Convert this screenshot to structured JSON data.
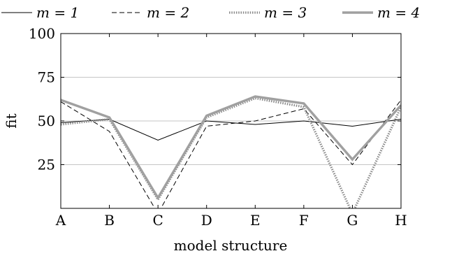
{
  "chart_data": {
    "type": "line",
    "categories": [
      "A",
      "B",
      "C",
      "D",
      "E",
      "F",
      "G",
      "H"
    ],
    "xlabel": "model structure",
    "ylabel": "fit",
    "ylim": [
      0,
      100
    ],
    "yticks": [
      25,
      50,
      75,
      100
    ],
    "grid": "horizontal",
    "legend_position": "top",
    "series": [
      {
        "name": "m = 1",
        "style": "solid-thin",
        "color": "#000000",
        "values": [
          49,
          51,
          39,
          50,
          48,
          50,
          47,
          51
        ]
      },
      {
        "name": "m = 2",
        "style": "dashed",
        "color": "#000000",
        "values": [
          61,
          44,
          -3,
          47,
          50,
          57,
          25,
          62
        ]
      },
      {
        "name": "m = 3",
        "style": "dotted",
        "color": "#8a8a8a",
        "values": [
          48,
          51,
          5,
          52,
          63,
          58,
          -3,
          58
        ]
      },
      {
        "name": "m = 4",
        "style": "solid-thick",
        "color": "#a0a0a0",
        "values": [
          62,
          52,
          6,
          53,
          64,
          60,
          28,
          59
        ]
      }
    ]
  }
}
